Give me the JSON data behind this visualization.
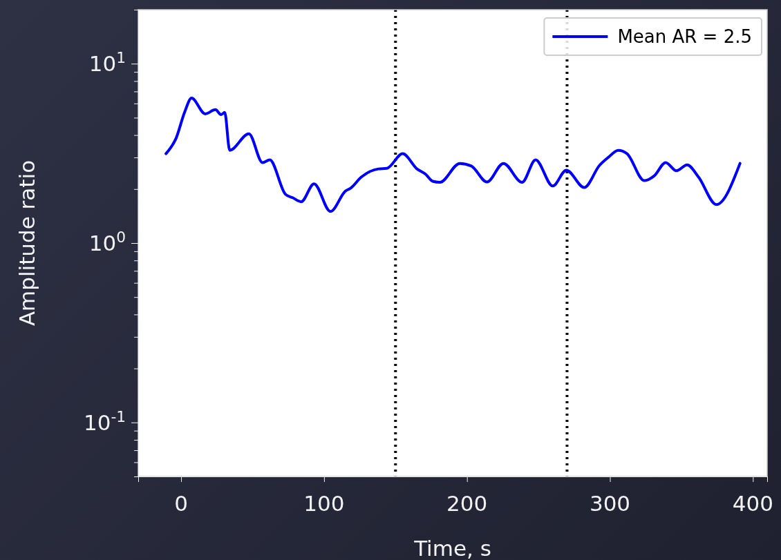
{
  "chart_data": {
    "type": "line",
    "xlabel": "Time, s",
    "ylabel": "Amplitude ratio",
    "xlim": [
      -30,
      410
    ],
    "xticks": [
      0,
      100,
      200,
      300,
      400
    ],
    "ylim": [
      0.05,
      20
    ],
    "log": true,
    "yticks": [
      {
        "value": 0.06,
        "label": null
      },
      {
        "value": 0.07,
        "label": null
      },
      {
        "value": 0.08,
        "label": null
      },
      {
        "value": 0.09,
        "label": null
      },
      {
        "value": 0.1,
        "label": "10$^{-1}$"
      },
      {
        "value": 0.2,
        "label": null
      },
      {
        "value": 0.3,
        "label": null
      },
      {
        "value": 0.4,
        "label": null
      },
      {
        "value": 0.5,
        "label": null
      },
      {
        "value": 0.6,
        "label": null
      },
      {
        "value": 0.7,
        "label": null
      },
      {
        "value": 0.8,
        "label": null
      },
      {
        "value": 0.9,
        "label": null
      },
      {
        "value": 1,
        "label": "10$^{0}$"
      },
      {
        "value": 2,
        "label": null
      },
      {
        "value": 3,
        "label": null
      },
      {
        "value": 4,
        "label": null
      },
      {
        "value": 5,
        "label": null
      },
      {
        "value": 6,
        "label": null
      },
      {
        "value": 7,
        "label": null
      },
      {
        "value": 8,
        "label": null
      },
      {
        "value": 9,
        "label": null
      },
      {
        "value": 10,
        "label": "10$^{1}$"
      }
    ],
    "series": [
      {
        "name": "Mean AR = 2.5",
        "color": "#0000ff",
        "x": [
          -10.6,
          -3.4,
          2.4,
          7.3,
          16.9,
          24,
          28,
          30.5,
          34,
          47.4,
          57,
          62,
          73,
          78,
          84,
          93,
          104.5,
          115,
          118.5,
          126,
          138,
          144,
          155,
          165,
          171,
          176,
          181,
          195,
          203,
          214,
          225.5,
          238.5,
          248,
          260,
          269.5,
          282,
          292.7,
          299,
          305.8,
          312,
          324,
          331,
          339,
          346.5,
          354,
          362,
          374.5,
          391
        ],
        "values": [
          3.15,
          3.86,
          5.35,
          6.43,
          5.25,
          5.54,
          5.2,
          5.35,
          3.29,
          4.07,
          2.81,
          2.91,
          1.87,
          1.79,
          1.7,
          2.14,
          1.5,
          1.95,
          2.02,
          2.33,
          2.59,
          2.61,
          3.15,
          2.59,
          2.42,
          2.21,
          2.18,
          2.78,
          2.69,
          2.19,
          2.78,
          2.18,
          2.91,
          2.08,
          2.55,
          2.04,
          2.71,
          3.01,
          3.29,
          3.15,
          2.23,
          2.37,
          2.81,
          2.53,
          2.73,
          2.33,
          1.64,
          2.78
        ]
      }
    ],
    "ref_lines": [
      {
        "axis": "x",
        "value": 150,
        "color": "#000000",
        "line_style": "dotted"
      },
      {
        "axis": "x",
        "value": 270,
        "color": "#000000",
        "line_style": "dotted"
      }
    ],
    "legend": "top right",
    "line_style": "solid",
    "marker": "none"
  }
}
